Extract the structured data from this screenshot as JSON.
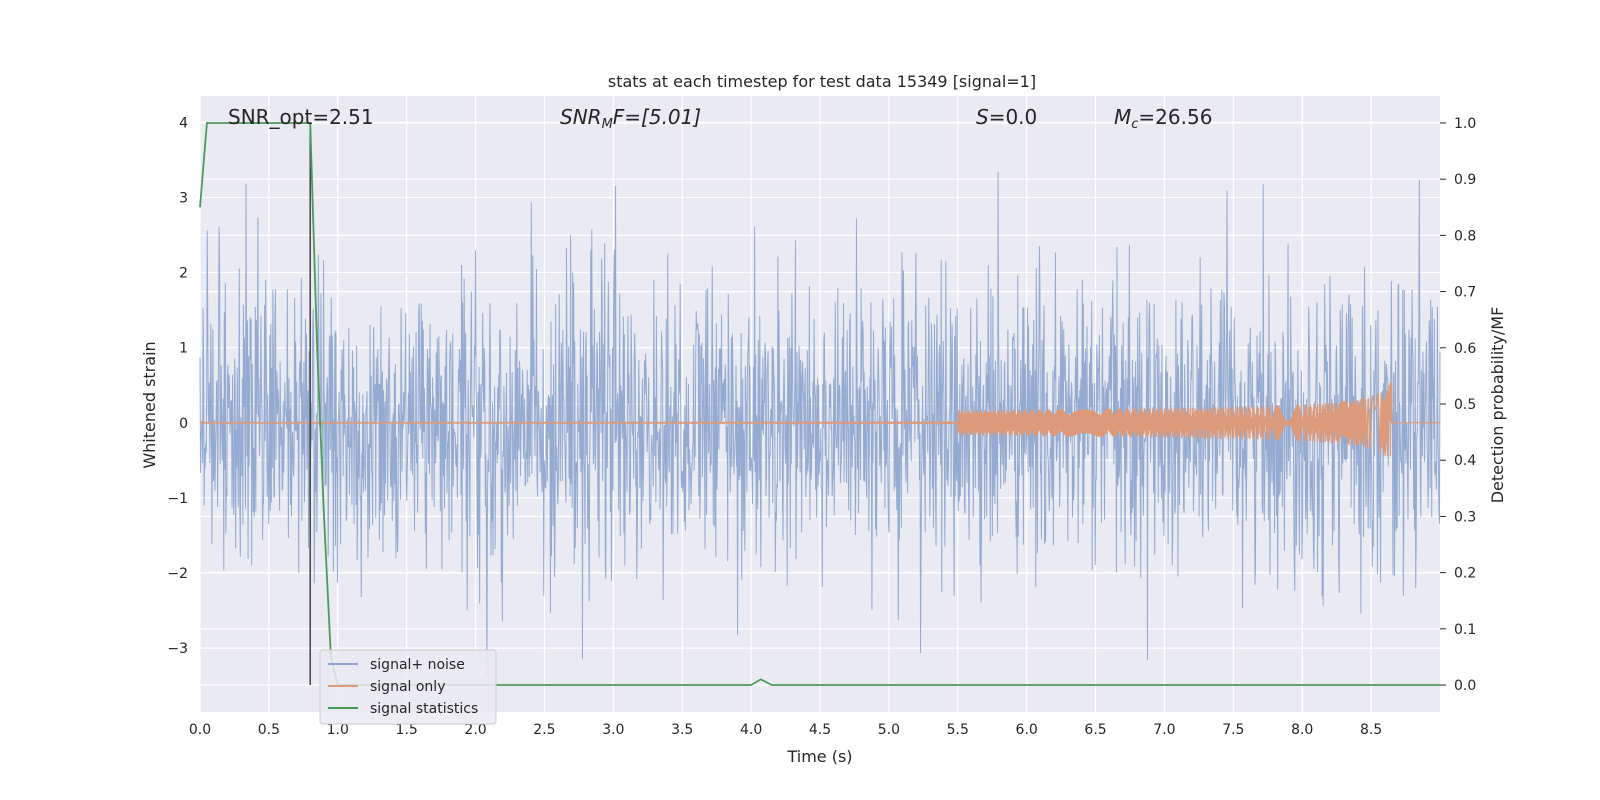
{
  "chart_data": {
    "type": "line",
    "title": "stats at each timestep for test data 15349 [signal=1]",
    "xlabel": "Time (s)",
    "ylabel_left": "Whitened strain",
    "ylabel_right": "Detection probability/MF",
    "xlim": [
      0.0,
      9.0
    ],
    "ylim_left": [
      -3.85,
      4.35
    ],
    "ylim_right": [
      -0.048,
      1.048
    ],
    "x_ticks": [
      "0.0",
      "0.5",
      "1.0",
      "1.5",
      "2.0",
      "2.5",
      "3.0",
      "3.5",
      "4.0",
      "4.5",
      "5.0",
      "5.5",
      "6.0",
      "6.5",
      "7.0",
      "7.5",
      "8.0",
      "8.5"
    ],
    "x_tick_values": [
      0.0,
      0.5,
      1.0,
      1.5,
      2.0,
      2.5,
      3.0,
      3.5,
      4.0,
      4.5,
      5.0,
      5.5,
      6.0,
      6.5,
      7.0,
      7.5,
      8.0,
      8.5
    ],
    "y_left_ticks": [
      "4",
      "3",
      "2",
      "1",
      "0",
      "−1",
      "−2",
      "−3"
    ],
    "y_left_tick_values": [
      4,
      3,
      2,
      1,
      0,
      -1,
      -2,
      -3
    ],
    "y_right_ticks": [
      "1.0",
      "0.9",
      "0.8",
      "0.7",
      "0.6",
      "0.5",
      "0.4",
      "0.3",
      "0.2",
      "0.1",
      "0.0"
    ],
    "y_right_tick_values": [
      1.0,
      0.9,
      0.8,
      0.7,
      0.6,
      0.5,
      0.4,
      0.3,
      0.2,
      0.1,
      0.0
    ],
    "grid": true,
    "legend_position": "lower-left",
    "annotations": {
      "snr_opt": "SNR_opt=2.51",
      "snr_mf_prefix": "SNR",
      "snr_mf_sub": "M",
      "snr_mf_rest": "F=[5.01]",
      "s_var": "S",
      "s_rest": "=0.0",
      "mc_var": "M",
      "mc_sub": "c",
      "mc_rest": "=26.56"
    },
    "vertical_marker_x": 0.8,
    "series": [
      {
        "name": "signal+ noise",
        "color": "#8fa6cf",
        "axis": "left",
        "description_values": {
          "typical_abs_max": 1.5,
          "peak_max": 4.0,
          "peak_min": -3.5
        }
      },
      {
        "name": "signal only",
        "color": "#dc9a7b",
        "axis": "left",
        "chirp_end_time": 8.65,
        "chirp_peak_amplitude": 0.6
      },
      {
        "name": "signal statistics",
        "color": "#4c9a5a",
        "axis": "right",
        "x": [
          0.0,
          0.05,
          0.1,
          0.8,
          0.85,
          0.9,
          0.95,
          1.0,
          4.0,
          4.07,
          4.15,
          9.0
        ],
        "y": [
          0.85,
          1.0,
          1.0,
          1.0,
          0.6,
          0.3,
          0.05,
          0.0,
          0.0,
          0.01,
          0.0,
          0.0
        ]
      }
    ]
  }
}
